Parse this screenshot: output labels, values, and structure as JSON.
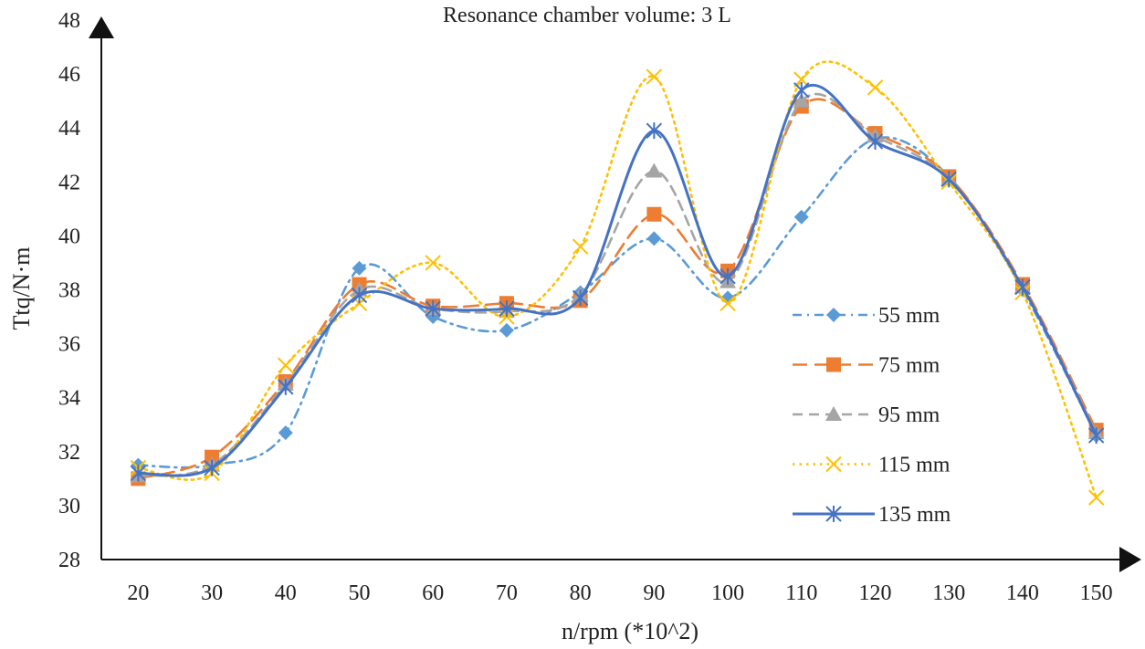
{
  "chart_data": {
    "type": "line",
    "title": "Resonance chamber volume: 3 L",
    "xlabel": "n/rpm (*10^2)",
    "ylabel": "Ttq/N·m",
    "categories": [
      20,
      30,
      40,
      50,
      60,
      70,
      80,
      90,
      100,
      110,
      120,
      130,
      140,
      150
    ],
    "xlim": [
      15,
      155
    ],
    "ylim": [
      28,
      48
    ],
    "yticks": [
      28,
      30,
      32,
      34,
      36,
      38,
      40,
      42,
      44,
      46,
      48
    ],
    "legend_position": "right",
    "series": [
      {
        "name": "55 mm",
        "color": "#5b9bd5",
        "dash": "dash-dot",
        "marker": "diamond",
        "values": [
          31.5,
          31.5,
          32.7,
          38.8,
          37.0,
          36.5,
          37.9,
          39.9,
          37.7,
          40.7,
          43.6,
          42.2,
          38.0,
          32.6
        ]
      },
      {
        "name": "75 mm",
        "color": "#ed7d31",
        "dash": "long-dash",
        "marker": "square",
        "values": [
          31.0,
          31.8,
          34.6,
          38.2,
          37.4,
          37.5,
          37.6,
          40.8,
          38.7,
          44.8,
          43.8,
          42.2,
          38.2,
          32.8
        ]
      },
      {
        "name": "95 mm",
        "color": "#a5a5a5",
        "dash": "dash",
        "marker": "triangle",
        "values": [
          31.1,
          31.5,
          34.5,
          38.0,
          37.3,
          37.2,
          37.8,
          42.4,
          38.3,
          45.0,
          43.7,
          42.1,
          38.1,
          32.7
        ]
      },
      {
        "name": "115 mm",
        "color": "#ffc000",
        "dash": "dot",
        "marker": "x",
        "values": [
          31.4,
          31.2,
          35.2,
          37.5,
          39.0,
          37.0,
          39.6,
          45.9,
          37.5,
          45.8,
          45.5,
          42.0,
          37.9,
          30.3
        ]
      },
      {
        "name": "135 mm",
        "color": "#4472c4",
        "dash": "solid",
        "marker": "star",
        "values": [
          31.2,
          31.4,
          34.4,
          37.8,
          37.3,
          37.3,
          37.7,
          43.9,
          38.5,
          45.4,
          43.5,
          42.1,
          38.1,
          32.6
        ]
      }
    ]
  }
}
